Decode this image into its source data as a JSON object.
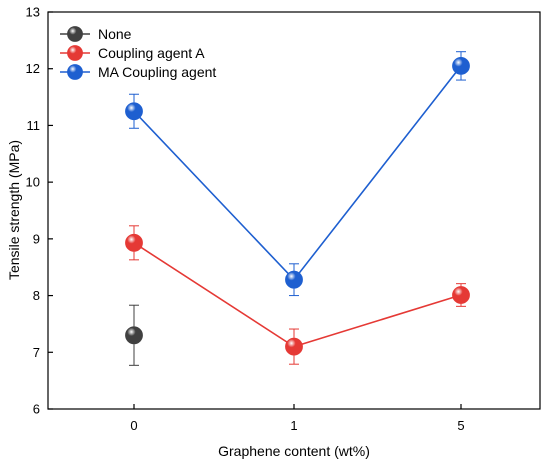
{
  "chart_data": {
    "type": "line",
    "xlabel": "Graphene content (wt%)",
    "ylabel": "Tensile strength (MPa)",
    "categories": [
      "0",
      "1",
      "5"
    ],
    "ylim": [
      6,
      13
    ],
    "yticks": [
      6,
      7,
      8,
      9,
      10,
      11,
      12,
      13
    ],
    "grid": false,
    "legend": "top-left",
    "series": [
      {
        "name": "None",
        "color": "#404040",
        "values": [
          7.3,
          null,
          null
        ],
        "errors": [
          0.53,
          null,
          null
        ],
        "connected": false
      },
      {
        "name": "Coupling agent A",
        "color": "#e53935",
        "values": [
          8.93,
          7.1,
          8.01
        ],
        "errors": [
          0.3,
          0.31,
          0.2
        ],
        "connected": true
      },
      {
        "name": "MA Coupling agent",
        "color": "#1e5fd0",
        "values": [
          11.25,
          8.28,
          12.05
        ],
        "errors": [
          0.3,
          0.28,
          0.25
        ],
        "connected": true
      }
    ]
  }
}
